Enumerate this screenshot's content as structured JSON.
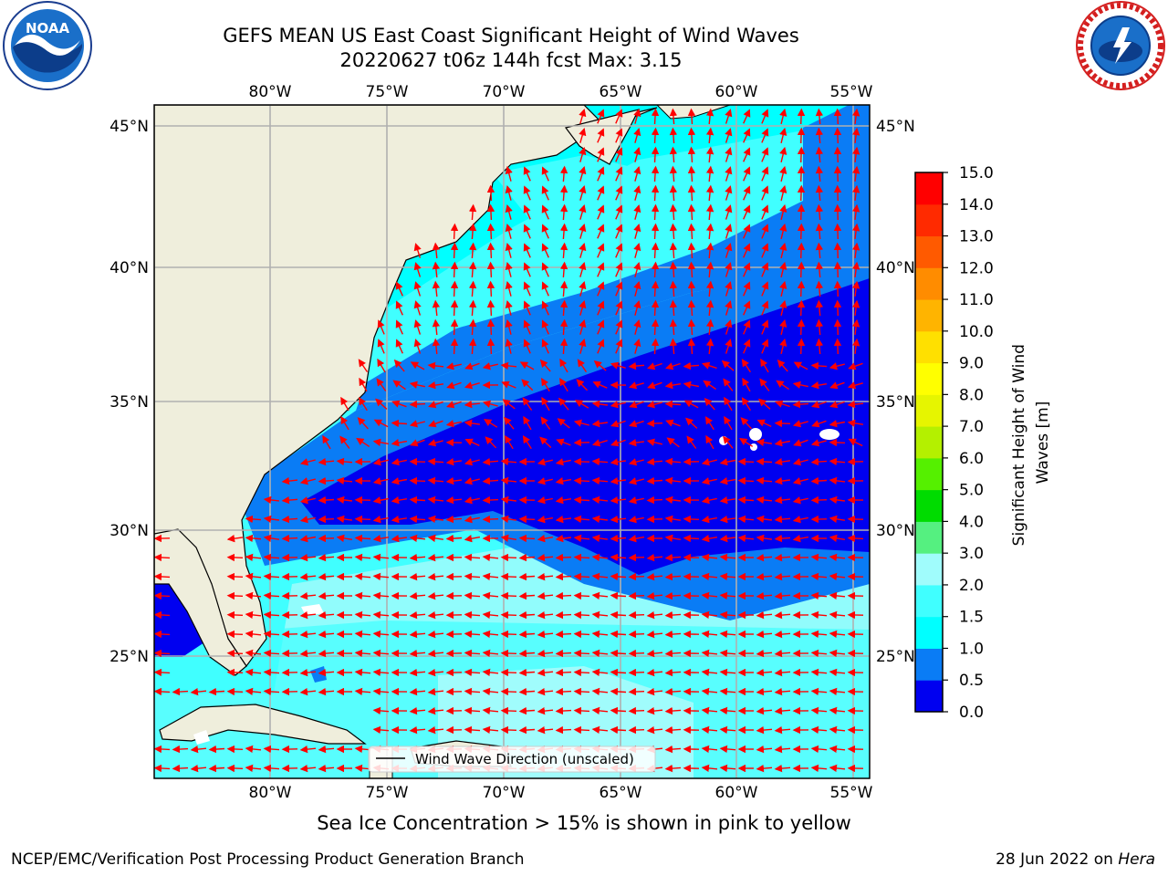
{
  "title_line1": "GEFS MEAN US East Coast Significant Height of Wind Waves",
  "title_line2": "20220627 t06z 144h fcst   Max: 3.15",
  "longitude_labels": [
    "80°W",
    "75°W",
    "70°W",
    "65°W",
    "60°W",
    "55°W"
  ],
  "latitude_labels": [
    "45°N",
    "40°N",
    "35°N",
    "30°N",
    "25°N"
  ],
  "legend_label": "Wind Wave Direction (unscaled)",
  "colorbar": {
    "label": "Significant Height of Wind Waves [m]",
    "ticks": [
      "0.0",
      "0.5",
      "1.0",
      "1.5",
      "2.0",
      "3.0",
      "4.0",
      "5.0",
      "6.0",
      "7.0",
      "8.0",
      "9.0",
      "10.0",
      "11.0",
      "12.0",
      "13.0",
      "14.0",
      "15.0"
    ],
    "colors": [
      "#0000f0",
      "#0a7cf5",
      "#00ffff",
      "#40ffff",
      "#a0fcfc",
      "#55f080",
      "#00dc00",
      "#55f000",
      "#b4f000",
      "#e6f500",
      "#ffff00",
      "#ffe000",
      "#ffb400",
      "#ff8c00",
      "#ff5a00",
      "#ff2a00",
      "#ff0000"
    ]
  },
  "ice_note": "Sea Ice Concentration > 15% is shown in pink to yellow",
  "footer_left": "NCEP/EMC/Verification Post Processing Product Generation Branch",
  "footer_right_date": "28 Jun 2022 on",
  "footer_right_host": "Hera",
  "colors": {
    "land": "#efeedc",
    "band_dark": "#0000f0",
    "band_blue": "#0a7cf5",
    "band_cyan": "#00ffff",
    "band_light": "#40ffff",
    "band_pale": "#a0fcfc",
    "arrow": "#ff0000",
    "grid": "#b0b0b0"
  }
}
